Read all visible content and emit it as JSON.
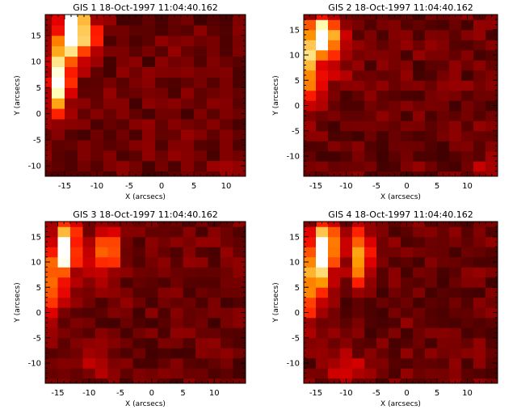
{
  "chart_data": [
    {
      "type": "heatmap",
      "title": "GIS 1 18-Oct-1997 11:04:40.162",
      "xlabel": "X (arcsecs)",
      "ylabel": "Y (arcsecs)",
      "xlim": [
        -18,
        13
      ],
      "ylim": [
        -12,
        19
      ],
      "xticks": [
        -15,
        -10,
        -5,
        0,
        5,
        10
      ],
      "yticks": [
        -10,
        -5,
        0,
        5,
        10,
        15
      ],
      "grid": false,
      "hot_spots": [
        {
          "x": -13.7,
          "y": 16.5,
          "sx": 1.3,
          "sy": 3.5,
          "a": 0.9
        },
        {
          "x": -15.8,
          "y": 8.0,
          "sx": 1.3,
          "sy": 4.5,
          "a": 0.6
        },
        {
          "x": -16.2,
          "y": 3.5,
          "sx": 1.2,
          "sy": 3.0,
          "a": 0.35
        },
        {
          "x": -11.5,
          "y": 14.5,
          "sx": 1.5,
          "sy": 3.0,
          "a": 0.35
        },
        {
          "x": 11.0,
          "y": -10.5,
          "sx": 1.5,
          "sy": 1.5,
          "a": 0.15
        }
      ],
      "seed": 3
    },
    {
      "type": "heatmap",
      "title": "GIS 2 18-Oct-1997 11:04:40.162",
      "xlabel": "X (arcsecs)",
      "ylabel": "Y (arcsecs)",
      "xlim": [
        -17,
        15
      ],
      "ylim": [
        -14,
        18
      ],
      "xticks": [
        -15,
        -10,
        -5,
        0,
        5,
        10
      ],
      "yticks": [
        -10,
        -5,
        0,
        5,
        10,
        15
      ],
      "grid": false,
      "hot_spots": [
        {
          "x": -13.7,
          "y": 14.0,
          "sx": 1.2,
          "sy": 2.5,
          "a": 0.9
        },
        {
          "x": -15.8,
          "y": 8.0,
          "sx": 1.2,
          "sy": 5.5,
          "a": 0.6
        },
        {
          "x": -11.5,
          "y": 11.5,
          "sx": 1.3,
          "sy": 4.0,
          "a": 0.3
        },
        {
          "x": 13.0,
          "y": -12.0,
          "sx": 1.5,
          "sy": 1.5,
          "a": 0.12
        }
      ],
      "seed": 11
    },
    {
      "type": "heatmap",
      "title": "GIS 3 18-Oct-1997 11:04:40.162",
      "xlabel": "X (arcsecs)",
      "ylabel": "Y (arcsecs)",
      "xlim": [
        -17,
        15
      ],
      "ylim": [
        -14,
        18
      ],
      "xticks": [
        -15,
        -10,
        -5,
        0,
        5,
        10
      ],
      "yticks": [
        -10,
        -5,
        0,
        5,
        10,
        15
      ],
      "grid": false,
      "hot_spots": [
        {
          "x": -13.7,
          "y": 13.0,
          "sx": 1.2,
          "sy": 3.5,
          "a": 0.95
        },
        {
          "x": -15.8,
          "y": 5.0,
          "sx": 1.2,
          "sy": 5.0,
          "a": 0.45
        },
        {
          "x": -7.0,
          "y": 12.0,
          "sx": 1.2,
          "sy": 3.0,
          "a": 0.5
        },
        {
          "x": -9.5,
          "y": 9.0,
          "sx": 1.3,
          "sy": 3.0,
          "a": 0.2
        },
        {
          "x": -8.0,
          "y": -10.5,
          "sx": 2.5,
          "sy": 2.5,
          "a": 0.12
        }
      ],
      "seed": 27
    },
    {
      "type": "heatmap",
      "title": "GIS 4 18-Oct-1997 11:04:40.162",
      "xlabel": "X (arcsecs)",
      "ylabel": "Y (arcsecs)",
      "xlim": [
        -17,
        15
      ],
      "ylim": [
        -14,
        18
      ],
      "xticks": [
        -15,
        -10,
        -5,
        0,
        5,
        10
      ],
      "yticks": [
        -10,
        -5,
        0,
        5,
        10,
        15
      ],
      "grid": false,
      "hot_spots": [
        {
          "x": -13.7,
          "y": 12.0,
          "sx": 1.2,
          "sy": 4.0,
          "a": 0.95
        },
        {
          "x": -15.8,
          "y": 6.0,
          "sx": 1.2,
          "sy": 5.0,
          "a": 0.5
        },
        {
          "x": -7.8,
          "y": 11.0,
          "sx": 1.2,
          "sy": 3.5,
          "a": 0.6
        },
        {
          "x": -9.5,
          "y": -11.0,
          "sx": 2.5,
          "sy": 2.0,
          "a": 0.2
        },
        {
          "x": -12.0,
          "y": 15.5,
          "sx": 1.5,
          "sy": 2.0,
          "a": 0.25
        }
      ],
      "seed": 41
    }
  ]
}
